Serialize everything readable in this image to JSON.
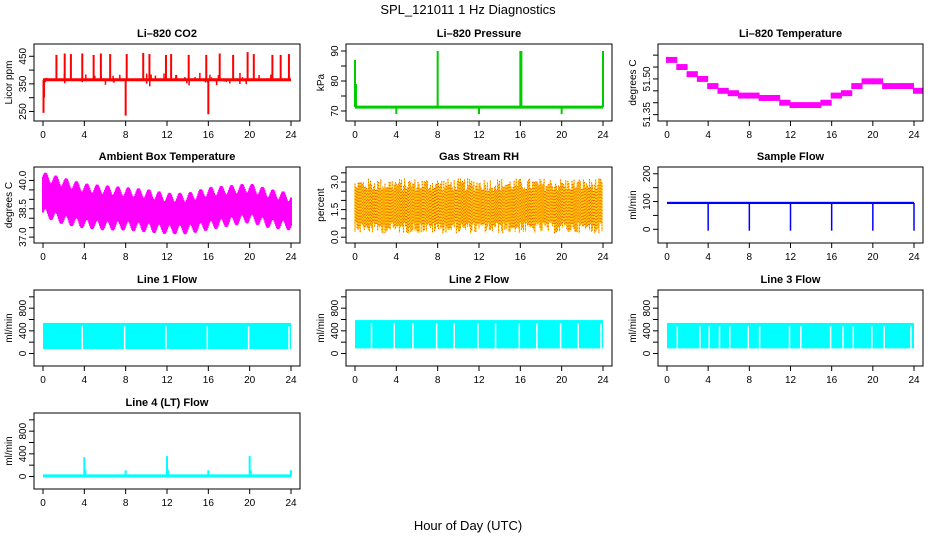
{
  "title": "SPL_121011  1 Hz Diagnostics",
  "xlabel": "Hour of Day (UTC)",
  "chart_data": [
    {
      "type": "line",
      "title": "Li-820 CO2",
      "ylabel": "Licor ppm",
      "color": "#ff0000",
      "xlim": [
        0,
        24
      ],
      "ylim": [
        230,
        480
      ],
      "xticks": [
        0,
        4,
        8,
        12,
        16,
        20,
        24
      ],
      "yticks": [
        250,
        300,
        350,
        400,
        450
      ],
      "ytick_labels": [
        "250",
        "",
        "350",
        "",
        "450"
      ],
      "baseline": 365,
      "spikes": [
        [
          0.05,
          245
        ],
        [
          0.1,
          300
        ],
        [
          1.3,
          455
        ],
        [
          2.1,
          460
        ],
        [
          2.7,
          458
        ],
        [
          3.8,
          460
        ],
        [
          4.9,
          455
        ],
        [
          5.6,
          460
        ],
        [
          6.5,
          458
        ],
        [
          8.0,
          235
        ],
        [
          8.1,
          458
        ],
        [
          9.7,
          462
        ],
        [
          10.3,
          458
        ],
        [
          11.9,
          455
        ],
        [
          12.4,
          458
        ],
        [
          14.1,
          455
        ],
        [
          15.8,
          455
        ],
        [
          16.0,
          240
        ],
        [
          17.1,
          460
        ],
        [
          18.4,
          455
        ],
        [
          19.8,
          465
        ],
        [
          20.4,
          458
        ],
        [
          22.2,
          455
        ],
        [
          23.0,
          455
        ],
        [
          23.8,
          458
        ]
      ],
      "grid": false
    },
    {
      "type": "line",
      "title": "Li-820 Pressure",
      "ylabel": "kPa",
      "color": "#00cc00",
      "xlim": [
        0,
        24
      ],
      "ylim": [
        68,
        91
      ],
      "xticks": [
        0,
        4,
        8,
        12,
        16,
        20,
        24
      ],
      "yticks": [
        70,
        75,
        80,
        85,
        90
      ],
      "ytick_labels": [
        "70",
        "",
        "80",
        "",
        "90"
      ],
      "baseline": 71.3,
      "spikes": [
        [
          0.0,
          87
        ],
        [
          0.1,
          79
        ],
        [
          4.0,
          69
        ],
        [
          8.0,
          90
        ],
        [
          12.0,
          69
        ],
        [
          16.0,
          90
        ],
        [
          16.1,
          90
        ],
        [
          20.0,
          69
        ],
        [
          24.0,
          90
        ]
      ],
      "grid": false
    },
    {
      "type": "line",
      "title": "Li-820 Temperature",
      "ylabel": "degrees C",
      "color": "#ff00ff",
      "xlim": [
        0,
        24
      ],
      "ylim": [
        51.34,
        51.63
      ],
      "xticks": [
        0,
        4,
        8,
        12,
        16,
        20,
        24
      ],
      "yticks": [
        51.35,
        51.4,
        51.45,
        51.5,
        51.55,
        51.6
      ],
      "ytick_labels": [
        "51.35",
        "",
        "",
        "51.50",
        "",
        ""
      ],
      "x": [
        0,
        1,
        2,
        3,
        4,
        5,
        6,
        7,
        8,
        9,
        10,
        11,
        12,
        13,
        14,
        15,
        16,
        17,
        18,
        19,
        20,
        21,
        22,
        23,
        24
      ],
      "y": [
        51.58,
        51.55,
        51.52,
        51.5,
        51.47,
        51.45,
        51.44,
        51.43,
        51.43,
        51.42,
        51.42,
        51.4,
        51.39,
        51.39,
        51.39,
        51.4,
        51.43,
        51.44,
        51.47,
        51.49,
        51.49,
        51.47,
        51.47,
        51.47,
        51.45
      ],
      "band": 0.025,
      "grid": false
    },
    {
      "type": "line",
      "title": "Ambient Box Temperature",
      "ylabel": "degrees C",
      "color": "#ff00ff",
      "xlim": [
        0,
        24
      ],
      "ylim": [
        36.9,
        40.5
      ],
      "xticks": [
        0,
        4,
        8,
        12,
        16,
        20,
        24
      ],
      "yticks": [
        37.0,
        37.5,
        38.0,
        38.5,
        39.0,
        39.5,
        40.0
      ],
      "ytick_labels": [
        "37.0",
        "",
        "",
        "38.5",
        "",
        "",
        "40.0"
      ],
      "x": [
        0,
        2,
        4,
        6,
        8,
        10,
        12,
        14,
        16,
        18,
        20,
        22,
        24
      ],
      "upper": [
        40.2,
        39.9,
        39.6,
        39.5,
        39.4,
        39.3,
        39.1,
        39.1,
        39.4,
        39.5,
        39.6,
        39.3,
        39.1
      ],
      "lower": [
        38.3,
        37.9,
        37.7,
        37.6,
        37.6,
        37.5,
        37.4,
        37.4,
        37.6,
        37.8,
        38.0,
        37.7,
        37.6
      ],
      "grid": false
    },
    {
      "type": "scatter",
      "title": "Gas Stream RH",
      "ylabel": "percent",
      "color": "#ffcc00",
      "color2": "#ff0000",
      "xlim": [
        0,
        24
      ],
      "ylim": [
        -0.1,
        3.6
      ],
      "xticks": [
        0,
        4,
        8,
        12,
        16,
        20,
        24
      ],
      "yticks": [
        0.0,
        0.5,
        1.0,
        1.5,
        2.0,
        2.5,
        3.0,
        3.5
      ],
      "ytick_labels": [
        "0.0",
        "",
        "",
        "1.5",
        "",
        "",
        "3.0",
        ""
      ],
      "range_typical": [
        0.8,
        2.5
      ],
      "range_extreme": [
        0.0,
        3.5
      ],
      "grid": false
    },
    {
      "type": "line",
      "title": "Sample Flow",
      "ylabel": "ml/min",
      "color": "#0000ff",
      "xlim": [
        0,
        24
      ],
      "ylim": [
        -35,
        210
      ],
      "xticks": [
        0,
        4,
        8,
        12,
        16,
        20,
        24
      ],
      "yticks": [
        0,
        50,
        100,
        150,
        200
      ],
      "ytick_labels": [
        "0",
        "",
        "100",
        "",
        "200"
      ],
      "baseline": 95,
      "dips": [
        4,
        8,
        12,
        16,
        20,
        24
      ],
      "dip_value": -5,
      "grid": false
    },
    {
      "type": "area",
      "title": "Line 1 Flow",
      "ylabel": "ml/min",
      "color": "#00ffff",
      "xlim": [
        0,
        24
      ],
      "ylim": [
        -150,
        1050
      ],
      "xticks": [
        0,
        4,
        8,
        12,
        16,
        20,
        24
      ],
      "yticks": [
        0,
        200,
        400,
        600,
        800,
        1000
      ],
      "ytick_labels": [
        "0",
        "",
        "400",
        "",
        "800",
        ""
      ],
      "band": [
        80,
        540
      ],
      "gaps": [
        3.8,
        7.9,
        11.9,
        15.9,
        19.9,
        23.8
      ],
      "grid": false
    },
    {
      "type": "area",
      "title": "Line 2 Flow",
      "ylabel": "ml/min",
      "color": "#00ffff",
      "xlim": [
        0,
        24
      ],
      "ylim": [
        -150,
        1050
      ],
      "xticks": [
        0,
        4,
        8,
        12,
        16,
        20,
        24
      ],
      "yticks": [
        0,
        200,
        400,
        600,
        800,
        1000
      ],
      "ytick_labels": [
        "0",
        "",
        "400",
        "",
        "800",
        ""
      ],
      "band": [
        90,
        590
      ],
      "gaps": [
        1.6,
        3.8,
        5.6,
        7.9,
        9.6,
        11.9,
        13.6,
        15.9,
        17.6,
        19.9,
        21.6,
        23.8
      ],
      "grid": false
    },
    {
      "type": "area",
      "title": "Line 3 Flow",
      "ylabel": "ml/min",
      "color": "#00ffff",
      "xlim": [
        0,
        24
      ],
      "ylim": [
        -150,
        1050
      ],
      "xticks": [
        0,
        4,
        8,
        12,
        16,
        20,
        24
      ],
      "yticks": [
        0,
        200,
        400,
        600,
        800,
        1000
      ],
      "ytick_labels": [
        "0",
        "",
        "400",
        "",
        "800",
        ""
      ],
      "band": [
        90,
        540
      ],
      "gaps": [
        1.0,
        3.2,
        4.1,
        5.1,
        6.1,
        7.9,
        9.0,
        11.9,
        13.0,
        15.9,
        17.1,
        18.1,
        19.9,
        21.1,
        23.7
      ],
      "grid": false
    },
    {
      "type": "line",
      "title": "Line 4 (LT) Flow",
      "ylabel": "ml/min",
      "color": "#00ffff",
      "xlim": [
        0,
        24
      ],
      "ylim": [
        -150,
        1050
      ],
      "xticks": [
        0,
        4,
        8,
        12,
        16,
        20,
        24
      ],
      "yticks": [
        0,
        200,
        400,
        600,
        800,
        1000
      ],
      "ytick_labels": [
        "0",
        "",
        "400",
        "",
        "800",
        ""
      ],
      "baseline": 10,
      "spikes": [
        [
          4.0,
          340
        ],
        [
          4.1,
          110
        ],
        [
          8.0,
          110
        ],
        [
          12.0,
          360
        ],
        [
          12.1,
          110
        ],
        [
          16.0,
          110
        ],
        [
          20.0,
          360
        ],
        [
          20.1,
          110
        ],
        [
          24.0,
          110
        ]
      ],
      "grid": false
    }
  ]
}
